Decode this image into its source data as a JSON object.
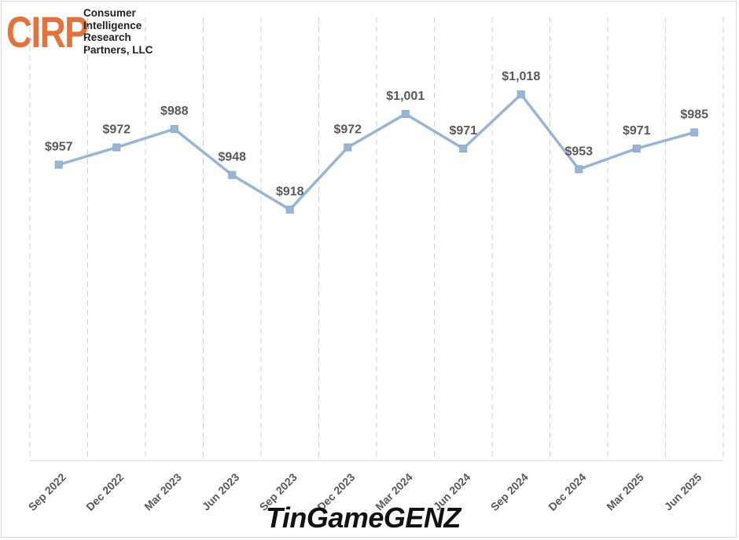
{
  "logo": {
    "mark": "CIRP",
    "lines": [
      "Consumer",
      "Intelligence",
      "Research",
      "Partners, LLC"
    ]
  },
  "watermark": "TinGameGENZ",
  "colors": {
    "line": "#98b5d6",
    "marker": "#98b5d6",
    "grid": "#d0d0d0",
    "logo": "#e2733c"
  },
  "chart_data": {
    "type": "line",
    "title": "",
    "xlabel": "",
    "ylabel": "",
    "categories": [
      "Sep 2022",
      "Dec 2022",
      "Mar 2023",
      "Jun 2023",
      "Sep 2023",
      "Dec 2023",
      "Mar 2024",
      "Jun 2024",
      "Sep 2024",
      "Dec 2024",
      "Mar 2025",
      "Jun 2025"
    ],
    "values": [
      957,
      972,
      988,
      948,
      918,
      972,
      1001,
      971,
      1018,
      953,
      971,
      985
    ],
    "labels": [
      "$957",
      "$972",
      "$988",
      "$948",
      "$918",
      "$972",
      "$1,001",
      "$971",
      "$1,018",
      "$953",
      "$971",
      "$985"
    ],
    "ylim": [
      700,
      1100
    ],
    "grid": "vertical dashed",
    "legend": "none"
  }
}
